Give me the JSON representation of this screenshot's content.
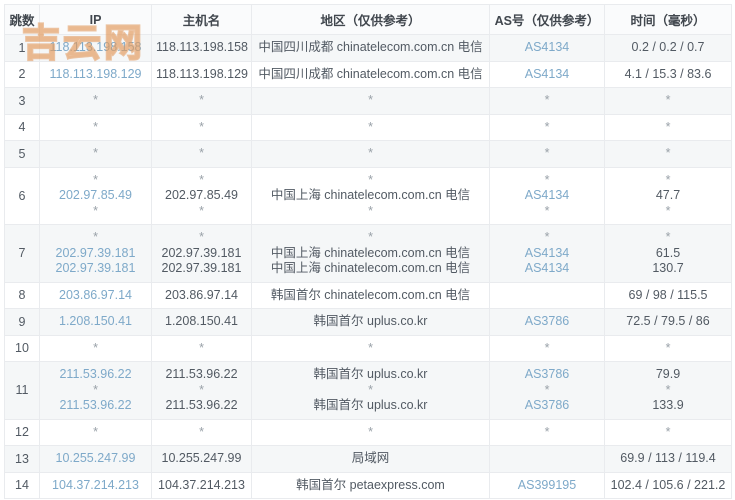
{
  "watermark": "吉云网",
  "colors": {
    "link_blue": "#7ea9c9",
    "asterisk_gray": "#99a1a8",
    "stripe_bg": "#f5f7f8",
    "border": "#e9ebee",
    "watermark_orange": "#e09658"
  },
  "table": {
    "headers": [
      "跳数",
      "IP",
      "主机名",
      "地区（仅供参考）",
      "AS号（仅供参考）",
      "时间（毫秒）"
    ],
    "rows": [
      {
        "hop": "1",
        "ip": [
          "118.113.198.158"
        ],
        "host": [
          "118.113.198.158"
        ],
        "region": [
          "中国四川成都 chinatelecom.com.cn 电信"
        ],
        "asn": [
          "AS4134"
        ],
        "time": [
          "0.2 / 0.2 / 0.7"
        ]
      },
      {
        "hop": "2",
        "ip": [
          "118.113.198.129"
        ],
        "host": [
          "118.113.198.129"
        ],
        "region": [
          "中国四川成都 chinatelecom.com.cn 电信"
        ],
        "asn": [
          "AS4134"
        ],
        "time": [
          "4.1 / 15.3 / 83.6"
        ]
      },
      {
        "hop": "3",
        "ip": [
          "*"
        ],
        "host": [
          "*"
        ],
        "region": [
          "*"
        ],
        "asn": [
          "*"
        ],
        "time": [
          "*"
        ]
      },
      {
        "hop": "4",
        "ip": [
          "*"
        ],
        "host": [
          "*"
        ],
        "region": [
          "*"
        ],
        "asn": [
          "*"
        ],
        "time": [
          "*"
        ]
      },
      {
        "hop": "5",
        "ip": [
          "*"
        ],
        "host": [
          "*"
        ],
        "region": [
          "*"
        ],
        "asn": [
          "*"
        ],
        "time": [
          "*"
        ]
      },
      {
        "hop": "6",
        "ip": [
          "*",
          "202.97.85.49",
          "*"
        ],
        "host": [
          "*",
          "202.97.85.49",
          "*"
        ],
        "region": [
          "*",
          "中国上海 chinatelecom.com.cn 电信",
          "*"
        ],
        "asn": [
          "*",
          "AS4134",
          "*"
        ],
        "time": [
          "*",
          "47.7",
          "*"
        ]
      },
      {
        "hop": "7",
        "ip": [
          "*",
          "202.97.39.181",
          "202.97.39.181"
        ],
        "host": [
          "*",
          "202.97.39.181",
          "202.97.39.181"
        ],
        "region": [
          "*",
          "中国上海 chinatelecom.com.cn 电信",
          "中国上海 chinatelecom.com.cn 电信"
        ],
        "asn": [
          "*",
          "AS4134",
          "AS4134"
        ],
        "time": [
          "*",
          "61.5",
          "130.7"
        ]
      },
      {
        "hop": "8",
        "ip": [
          "203.86.97.14"
        ],
        "host": [
          "203.86.97.14"
        ],
        "region": [
          "韩国首尔 chinatelecom.com.cn 电信"
        ],
        "asn": [
          ""
        ],
        "time": [
          "69 / 98 / 115.5"
        ]
      },
      {
        "hop": "9",
        "ip": [
          "1.208.150.41"
        ],
        "host": [
          "1.208.150.41"
        ],
        "region": [
          "韩国首尔 uplus.co.kr"
        ],
        "asn": [
          "AS3786"
        ],
        "time": [
          "72.5 / 79.5 / 86"
        ]
      },
      {
        "hop": "10",
        "ip": [
          "*"
        ],
        "host": [
          "*"
        ],
        "region": [
          "*"
        ],
        "asn": [
          "*"
        ],
        "time": [
          "*"
        ]
      },
      {
        "hop": "11",
        "ip": [
          "211.53.96.22",
          "*",
          "211.53.96.22"
        ],
        "host": [
          "211.53.96.22",
          "*",
          "211.53.96.22"
        ],
        "region": [
          "韩国首尔 uplus.co.kr",
          "*",
          "韩国首尔 uplus.co.kr"
        ],
        "asn": [
          "AS3786",
          "*",
          "AS3786"
        ],
        "time": [
          "79.9",
          "*",
          "133.9"
        ]
      },
      {
        "hop": "12",
        "ip": [
          "*"
        ],
        "host": [
          "*"
        ],
        "region": [
          "*"
        ],
        "asn": [
          "*"
        ],
        "time": [
          "*"
        ]
      },
      {
        "hop": "13",
        "ip": [
          "10.255.247.99"
        ],
        "host": [
          "10.255.247.99"
        ],
        "region": [
          "局域网"
        ],
        "asn": [
          ""
        ],
        "time": [
          "69.9 / 113 / 119.4"
        ]
      },
      {
        "hop": "14",
        "ip": [
          "104.37.214.213"
        ],
        "host": [
          "104.37.214.213"
        ],
        "region": [
          "韩国首尔 petaexpress.com"
        ],
        "asn": [
          "AS399195"
        ],
        "time": [
          "102.4 / 105.6 / 221.2"
        ]
      }
    ]
  }
}
